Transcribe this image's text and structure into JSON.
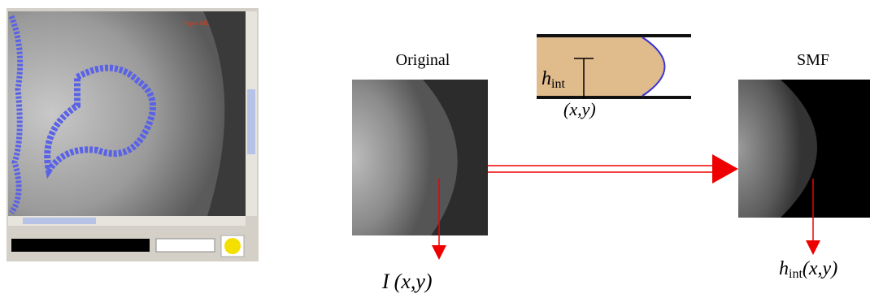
{
  "screenshot": {
    "overlay_text": "Super ML"
  },
  "original": {
    "title": "Original",
    "output": {
      "symbol": "I",
      "args": "(x,y)"
    }
  },
  "structuring_element": {
    "height": {
      "symbol": "h",
      "subscript": "int"
    },
    "origin": "(x,y)"
  },
  "smf": {
    "title": "SMF",
    "output": {
      "symbol": "h",
      "subscript": "int",
      "args": "(x,y)"
    }
  }
}
